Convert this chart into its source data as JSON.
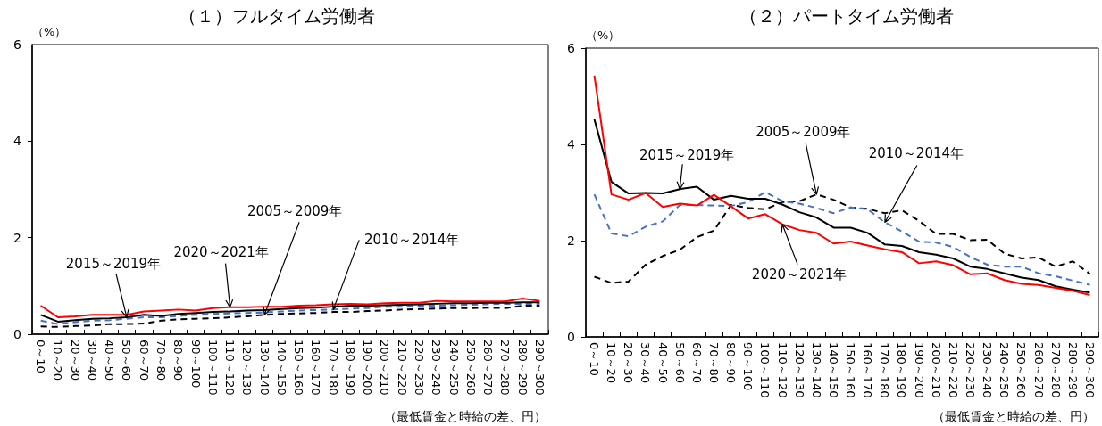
{
  "chart_data": [
    {
      "type": "line",
      "title": "（１）フルタイム労働者",
      "ylabel": "（%）",
      "xlabel": "（最低賃金と時給の差、円）",
      "categories": [
        "0～10",
        "10～20",
        "20～30",
        "30～40",
        "40～50",
        "50～60",
        "60～70",
        "70～80",
        "80～90",
        "90～100",
        "100～110",
        "110～120",
        "120～130",
        "130～140",
        "140～150",
        "150～160",
        "160～170",
        "170～180",
        "180～190",
        "190～200",
        "200～210",
        "210～220",
        "220～230",
        "230～240",
        "240～250",
        "250～260",
        "260～270",
        "270～280",
        "280～290",
        "290～300"
      ],
      "series": [
        {
          "name": "2005～2009年",
          "color": "#000000",
          "line_style": "dashed",
          "values": [
            0.16,
            0.15,
            0.17,
            0.18,
            0.21,
            0.21,
            0.22,
            0.28,
            0.31,
            0.32,
            0.33,
            0.35,
            0.37,
            0.4,
            0.42,
            0.43,
            0.44,
            0.46,
            0.46,
            0.48,
            0.49,
            0.51,
            0.52,
            0.53,
            0.54,
            0.54,
            0.55,
            0.54,
            0.59,
            0.59
          ]
        },
        {
          "name": "2010～2014年",
          "color": "#4472c4",
          "line_style": "dashed",
          "values": [
            0.28,
            0.21,
            0.25,
            0.28,
            0.29,
            0.32,
            0.35,
            0.35,
            0.38,
            0.4,
            0.42,
            0.43,
            0.44,
            0.45,
            0.47,
            0.49,
            0.5,
            0.51,
            0.53,
            0.54,
            0.57,
            0.57,
            0.59,
            0.59,
            0.6,
            0.61,
            0.62,
            0.63,
            0.63,
            0.63
          ]
        },
        {
          "name": "2015～2019年",
          "color": "#000000",
          "line_style": "solid",
          "values": [
            0.4,
            0.26,
            0.29,
            0.32,
            0.33,
            0.35,
            0.4,
            0.38,
            0.42,
            0.44,
            0.46,
            0.47,
            0.49,
            0.5,
            0.52,
            0.54,
            0.55,
            0.57,
            0.59,
            0.59,
            0.6,
            0.61,
            0.62,
            0.63,
            0.64,
            0.64,
            0.65,
            0.65,
            0.66,
            0.66
          ]
        },
        {
          "name": "2020～2021年",
          "color": "#ff0000",
          "line_style": "solid",
          "values": [
            0.59,
            0.35,
            0.37,
            0.4,
            0.4,
            0.4,
            0.47,
            0.49,
            0.51,
            0.49,
            0.54,
            0.56,
            0.56,
            0.57,
            0.57,
            0.59,
            0.6,
            0.62,
            0.63,
            0.62,
            0.64,
            0.65,
            0.65,
            0.69,
            0.68,
            0.68,
            0.68,
            0.68,
            0.74,
            0.69
          ]
        }
      ],
      "ylim": [
        0,
        6
      ],
      "yticks": [
        0,
        2,
        4,
        6
      ]
    },
    {
      "type": "line",
      "title": "（２）パートタイム労働者",
      "ylabel": "（%）",
      "xlabel": "（最低賃金と時給の差、円）",
      "categories": [
        "0～10",
        "10～20",
        "20～30",
        "30～40",
        "40～50",
        "50～60",
        "60～70",
        "70～80",
        "80～90",
        "90～100",
        "100～110",
        "110～120",
        "120～130",
        "130～140",
        "140～150",
        "150～160",
        "160～170",
        "170～180",
        "180～190",
        "190～200",
        "200～210",
        "210～220",
        "220～230",
        "230～240",
        "240～250",
        "250～260",
        "260～270",
        "270～280",
        "280～290",
        "290～300"
      ],
      "series": [
        {
          "name": "2005～2009年",
          "color": "#000000",
          "line_style": "dashed",
          "values": [
            1.25,
            1.12,
            1.15,
            1.5,
            1.68,
            1.81,
            2.07,
            2.21,
            2.74,
            2.68,
            2.65,
            2.8,
            2.82,
            2.96,
            2.85,
            2.69,
            2.66,
            2.57,
            2.63,
            2.41,
            2.14,
            2.14,
            2.01,
            2.02,
            1.73,
            1.63,
            1.65,
            1.46,
            1.57,
            1.31
          ]
        },
        {
          "name": "2010～2014年",
          "color": "#4472c4",
          "line_style": "dashed",
          "values": [
            2.96,
            2.15,
            2.09,
            2.29,
            2.4,
            2.74,
            2.74,
            2.73,
            2.72,
            2.8,
            3.01,
            2.82,
            2.77,
            2.68,
            2.57,
            2.69,
            2.65,
            2.38,
            2.19,
            1.98,
            1.96,
            1.87,
            1.66,
            1.5,
            1.46,
            1.46,
            1.32,
            1.26,
            1.17,
            1.08
          ]
        },
        {
          "name": "2015～2019年",
          "color": "#000000",
          "line_style": "solid",
          "values": [
            4.52,
            3.22,
            2.98,
            2.99,
            2.98,
            3.07,
            3.12,
            2.85,
            2.93,
            2.87,
            2.87,
            2.75,
            2.59,
            2.48,
            2.27,
            2.27,
            2.16,
            1.92,
            1.89,
            1.76,
            1.71,
            1.63,
            1.46,
            1.41,
            1.32,
            1.23,
            1.18,
            1.05,
            0.98,
            0.92
          ]
        },
        {
          "name": "2020～2021年",
          "color": "#ff0000",
          "line_style": "solid",
          "values": [
            5.43,
            2.96,
            2.85,
            2.99,
            2.7,
            2.77,
            2.73,
            2.95,
            2.71,
            2.46,
            2.55,
            2.34,
            2.22,
            2.16,
            1.94,
            1.98,
            1.9,
            1.82,
            1.76,
            1.53,
            1.57,
            1.49,
            1.3,
            1.32,
            1.18,
            1.1,
            1.08,
            1.02,
            0.96,
            0.87
          ]
        }
      ],
      "ylim": [
        0,
        6
      ],
      "yticks": [
        0,
        2,
        4,
        6
      ]
    }
  ]
}
